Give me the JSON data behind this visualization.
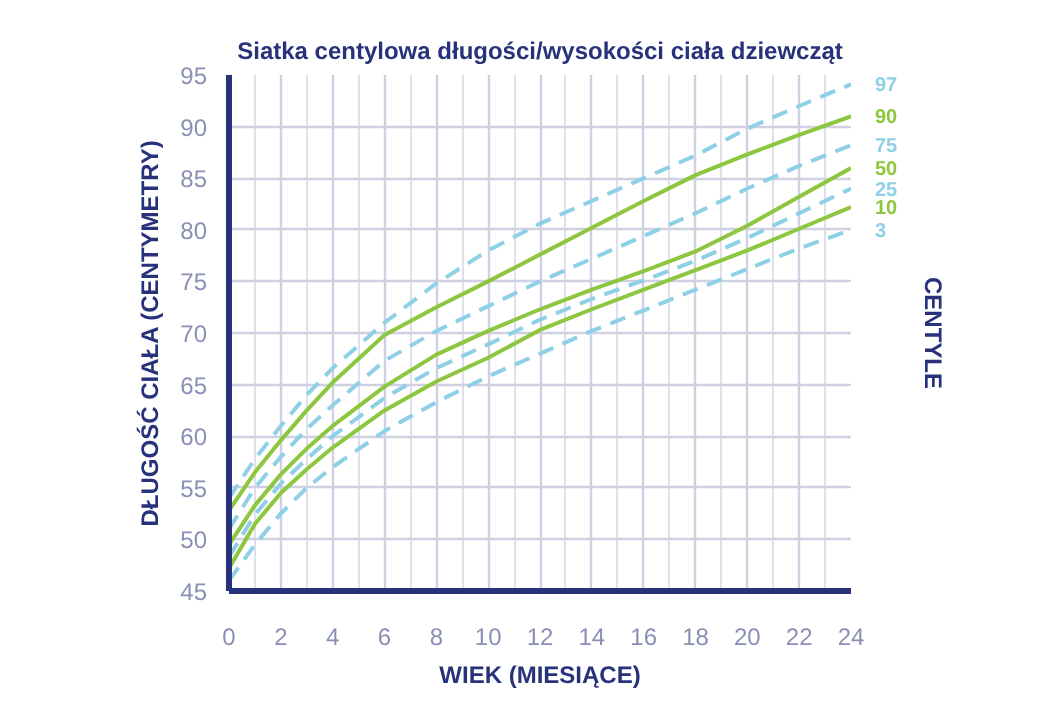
{
  "chart_data": {
    "type": "line",
    "title": "Siatka centylowa długości/wysokości ciała dziewcząt",
    "xlabel": "WIEK (MIESIĄCE)",
    "ylabel": "DŁUGOŚĆ CIAŁA (CENTYMETRY)",
    "y2label": "CENTYLE",
    "x": [
      0,
      1,
      2,
      3,
      4,
      6,
      8,
      10,
      12,
      14,
      16,
      18,
      20,
      22,
      24
    ],
    "series": [
      {
        "name": "97",
        "color": "#8fd0e6",
        "line_style": "dashed",
        "values": [
          54,
          57.8,
          61,
          64,
          66.6,
          71,
          74.8,
          78,
          80.6,
          82.8,
          85,
          87.2,
          89.8,
          92,
          94.1
        ]
      },
      {
        "name": "90",
        "color": "#8dc63f",
        "line_style": "solid",
        "values": [
          52.8,
          56.5,
          59.6,
          62.5,
          65.2,
          69.8,
          72.5,
          75,
          77.6,
          80.2,
          82.8,
          85.3,
          87.3,
          89.2,
          91
        ]
      },
      {
        "name": "75",
        "color": "#8fd0e6",
        "line_style": "dashed",
        "values": [
          51,
          55,
          58,
          60.7,
          63,
          67.3,
          70.2,
          72.6,
          75,
          77.2,
          79.4,
          81.6,
          84,
          86.2,
          88.2
        ]
      },
      {
        "name": "50",
        "color": "#8dc63f",
        "line_style": "solid",
        "values": [
          49.5,
          53.3,
          56.3,
          58.8,
          61,
          64.8,
          67.9,
          70.2,
          72.3,
          74.2,
          76,
          77.9,
          80.4,
          83.2,
          86
        ]
      },
      {
        "name": "25",
        "color": "#8fd0e6",
        "line_style": "dashed",
        "values": [
          48.3,
          52.4,
          55.4,
          57.8,
          60,
          63.7,
          66.6,
          68.9,
          71.3,
          73.3,
          75.1,
          77,
          79.2,
          81.6,
          84
        ]
      },
      {
        "name": "10",
        "color": "#8dc63f",
        "line_style": "solid",
        "values": [
          47.2,
          51.5,
          54.5,
          56.8,
          58.9,
          62.5,
          65.3,
          67.6,
          70.3,
          72.3,
          74.2,
          76.1,
          78,
          80.1,
          82.2
        ]
      },
      {
        "name": "3",
        "color": "#8fd0e6",
        "line_style": "dashed",
        "values": [
          46,
          49.5,
          52.5,
          55,
          57,
          60.5,
          63.3,
          65.8,
          68,
          70.2,
          72.2,
          74.2,
          76.2,
          78.2,
          80
        ]
      }
    ],
    "xlim": [
      0,
      24
    ],
    "xticks": [
      0,
      2,
      4,
      6,
      8,
      10,
      12,
      14,
      16,
      18,
      20,
      22,
      24
    ],
    "ylim": [
      45,
      95
    ],
    "yticks": [
      45,
      50,
      55,
      60,
      65,
      70,
      75,
      80,
      85,
      90,
      95
    ],
    "grid": true
  }
}
